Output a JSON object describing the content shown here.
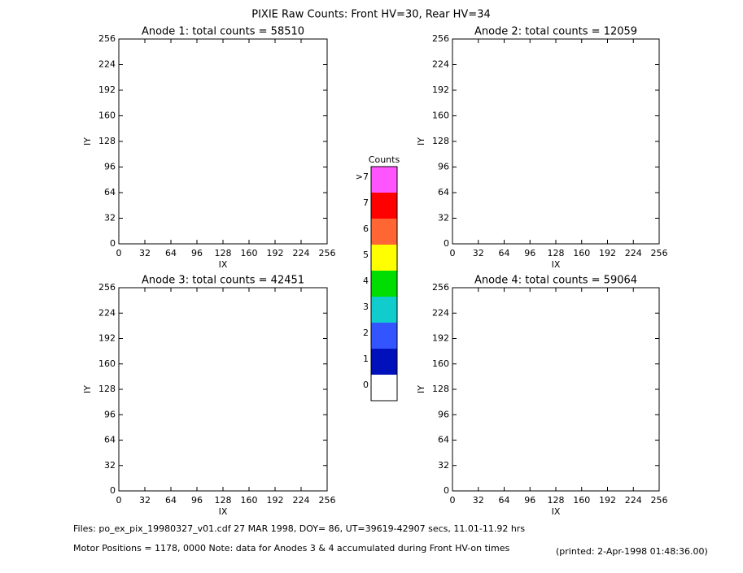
{
  "title": "PIXIE Raw Counts:  Front HV=30, Rear HV=34",
  "chart_data": [
    {
      "type": "heatmap",
      "title": "Anode 1: total counts = 58510",
      "xlabel": "IX",
      "ylabel": "IY",
      "xlim": [
        0,
        256
      ],
      "ylim": [
        0,
        256
      ],
      "xticks": [
        0,
        32,
        64,
        96,
        128,
        160,
        192,
        224,
        256
      ],
      "yticks": [
        0,
        32,
        64,
        96,
        128,
        160,
        192,
        224,
        256
      ]
    },
    {
      "type": "heatmap",
      "title": "Anode 2: total counts = 12059",
      "xlabel": "IX",
      "ylabel": "IY",
      "xlim": [
        0,
        256
      ],
      "ylim": [
        0,
        256
      ],
      "xticks": [
        0,
        32,
        64,
        96,
        128,
        160,
        192,
        224,
        256
      ],
      "yticks": [
        0,
        32,
        64,
        96,
        128,
        160,
        192,
        224,
        256
      ]
    },
    {
      "type": "heatmap",
      "title": "Anode 3: total counts = 42451",
      "xlabel": "IX",
      "ylabel": "IY",
      "xlim": [
        0,
        256
      ],
      "ylim": [
        0,
        256
      ],
      "xticks": [
        0,
        32,
        64,
        96,
        128,
        160,
        192,
        224,
        256
      ],
      "yticks": [
        0,
        32,
        64,
        96,
        128,
        160,
        192,
        224,
        256
      ]
    },
    {
      "type": "heatmap",
      "title": "Anode 4: total counts = 59064",
      "xlabel": "IX",
      "ylabel": "IY",
      "xlim": [
        0,
        256
      ],
      "ylim": [
        0,
        256
      ],
      "xticks": [
        0,
        32,
        64,
        96,
        128,
        160,
        192,
        224,
        256
      ],
      "yticks": [
        0,
        32,
        64,
        96,
        128,
        160,
        192,
        224,
        256
      ]
    }
  ],
  "colorbar": {
    "title": "Counts",
    "labels": [
      ">7",
      "7",
      "6",
      "5",
      "4",
      "3",
      "2",
      "1",
      "0"
    ],
    "colors": [
      "#ff55ff",
      "#ff0000",
      "#ff6633",
      "#ffff00",
      "#00dd00",
      "#11cccc",
      "#3355ff",
      "#0011bb",
      "#ffffff"
    ]
  },
  "footer": {
    "files": "Files: po_ex_pix_19980327_v01.cdf    27 MAR 1998, DOY= 86, UT=39619-42907 secs, 11.01-11.92 hrs",
    "motor": "Motor Positions = 1178, 0000   Note: data for Anodes 3 & 4 accumulated during Front HV-on times",
    "printed": "(printed:  2-Apr-1998 01:48:36.00)"
  }
}
